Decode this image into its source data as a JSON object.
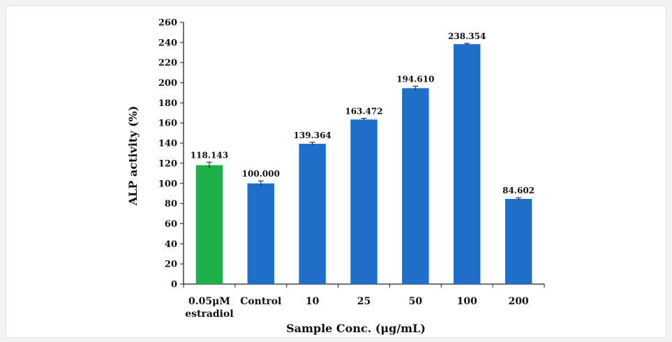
{
  "chart_data": {
    "type": "bar",
    "xlabel": "Sample Conc. (μg/mL)",
    "ylabel": "ALP activity (%)",
    "ylim": [
      0,
      260
    ],
    "yticks": [
      0,
      20,
      40,
      60,
      80,
      100,
      120,
      140,
      160,
      180,
      200,
      220,
      240,
      260
    ],
    "categories": [
      [
        "0.05μM",
        "estradiol"
      ],
      [
        "Control"
      ],
      [
        "10"
      ],
      [
        "25"
      ],
      [
        "50"
      ],
      [
        "100"
      ],
      [
        "200"
      ]
    ],
    "values": [
      118.143,
      100.0,
      139.364,
      163.472,
      194.61,
      238.354,
      84.602
    ],
    "value_labels": [
      "118.143",
      "100.000",
      "139.364",
      "163.472",
      "194.610",
      "238.354",
      "84.602"
    ],
    "errors": [
      3.0,
      2.5,
      1.5,
      1.2,
      2.0,
      0.8,
      1.2
    ],
    "colors": [
      "#1db04b",
      "#1f6fc8",
      "#1f6fc8",
      "#1f6fc8",
      "#1f6fc8",
      "#1f6fc8",
      "#1f6fc8"
    ],
    "grid": false,
    "legend": false
  }
}
